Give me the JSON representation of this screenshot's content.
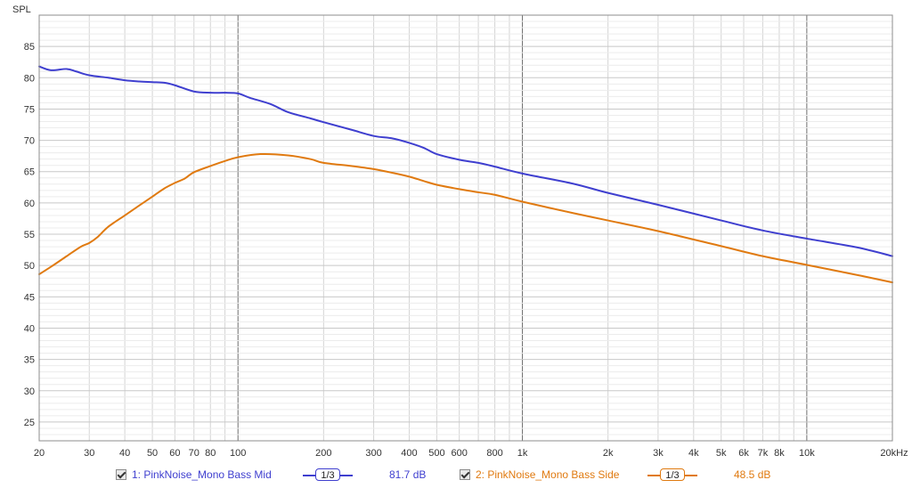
{
  "chart_data": {
    "type": "line",
    "ylabel": "SPL",
    "xscale": "log",
    "xlim": [
      20,
      20000
    ],
    "ylim": [
      22,
      90
    ],
    "grid": true,
    "x_tick_labels": [
      "20",
      "30",
      "40",
      "50",
      "60",
      "70",
      "80",
      "100",
      "200",
      "300",
      "400",
      "500",
      "600",
      "800",
      "1k",
      "2k",
      "3k",
      "4k",
      "5k",
      "6k",
      "7k",
      "8k",
      "10k",
      "20kHz"
    ],
    "x_tick_values": [
      20,
      30,
      40,
      50,
      60,
      70,
      80,
      100,
      200,
      300,
      400,
      500,
      600,
      800,
      1000,
      2000,
      3000,
      4000,
      5000,
      6000,
      7000,
      8000,
      10000,
      20000
    ],
    "y_tick_labels": [
      "25",
      "30",
      "35",
      "40",
      "45",
      "50",
      "55",
      "60",
      "65",
      "70",
      "75",
      "80",
      "85"
    ],
    "y_tick_values": [
      25,
      30,
      35,
      40,
      45,
      50,
      55,
      60,
      65,
      70,
      75,
      80,
      85
    ],
    "series": [
      {
        "name": "1: PinkNoise_Mono Bass Mid",
        "color": "#3f3fcf",
        "x": [
          20,
          22,
          25,
          27,
          30,
          35,
          40,
          45,
          50,
          55,
          60,
          70,
          80,
          90,
          100,
          110,
          130,
          150,
          180,
          200,
          250,
          300,
          350,
          400,
          450,
          500,
          600,
          700,
          800,
          1000,
          1500,
          2000,
          3000,
          5000,
          7000,
          10000,
          15000,
          20000
        ],
        "y": [
          81.8,
          81.2,
          81.4,
          81.0,
          80.4,
          80.0,
          79.6,
          79.4,
          79.3,
          79.2,
          78.8,
          77.8,
          77.6,
          77.6,
          77.5,
          76.8,
          75.8,
          74.5,
          73.5,
          72.9,
          71.7,
          70.7,
          70.3,
          69.6,
          68.8,
          67.8,
          66.9,
          66.4,
          65.8,
          64.7,
          63.1,
          61.6,
          59.7,
          57.2,
          55.6,
          54.3,
          52.9,
          51.5
        ]
      },
      {
        "name": "2: PinkNoise_Mono Bass Side",
        "color": "#e07a10",
        "x": [
          20,
          22,
          25,
          28,
          30,
          32,
          35,
          40,
          45,
          50,
          55,
          60,
          65,
          70,
          80,
          90,
          100,
          120,
          150,
          180,
          200,
          250,
          300,
          350,
          400,
          450,
          500,
          600,
          700,
          800,
          1000,
          1500,
          2000,
          3000,
          5000,
          7000,
          10000,
          15000,
          20000
        ],
        "y": [
          48.6,
          49.8,
          51.5,
          53.0,
          53.6,
          54.5,
          56.2,
          58.0,
          59.6,
          61.0,
          62.3,
          63.2,
          63.9,
          64.9,
          65.9,
          66.7,
          67.3,
          67.8,
          67.6,
          67.0,
          66.4,
          65.9,
          65.4,
          64.8,
          64.2,
          63.5,
          62.9,
          62.2,
          61.7,
          61.3,
          60.2,
          58.4,
          57.2,
          55.5,
          53.1,
          51.5,
          50.1,
          48.5,
          47.3
        ]
      }
    ]
  },
  "legend": {
    "items": [
      {
        "label": "1: PinkNoise_Mono Bass Mid",
        "smoothing": "1/3",
        "value": "81.7 dB",
        "color": "#3f3fcf"
      },
      {
        "label": "2: PinkNoise_Mono Bass Side",
        "smoothing": "1/3",
        "value": "48.5 dB",
        "color": "#e07a10"
      }
    ]
  }
}
